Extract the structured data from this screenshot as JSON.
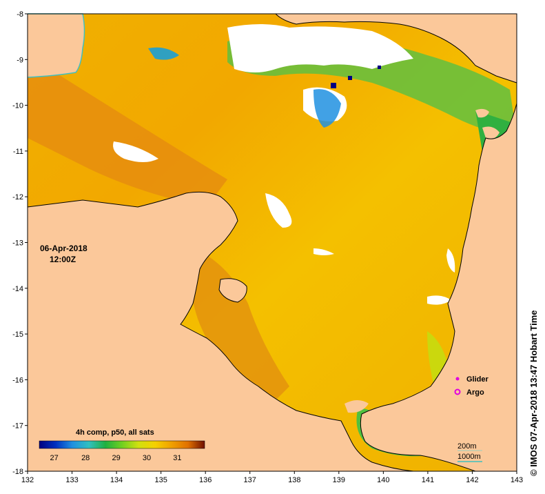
{
  "map": {
    "datetime_line1": "06-Apr-2018",
    "datetime_line2": "12:00Z",
    "credit": "© IMOS 07-Apr-2018 13:47 Hobart Time",
    "longitude_ticks": [
      "132",
      "133",
      "134",
      "135",
      "136",
      "137",
      "138",
      "139",
      "140",
      "141",
      "142",
      "143"
    ],
    "latitude_ticks": [
      "-8",
      "-9",
      "-10",
      "-11",
      "-12",
      "-13",
      "-14",
      "-15",
      "-16",
      "-17",
      "-18"
    ],
    "colorbar": {
      "title": "4h comp, p50, all sats",
      "tick_labels": [
        "27",
        "28",
        "29",
        "30",
        "31"
      ],
      "colors": [
        "#000080",
        "#0030c0",
        "#2090e0",
        "#30c0c0",
        "#20b040",
        "#70d020",
        "#d0e010",
        "#f5d000",
        "#f0a000",
        "#e07000",
        "#b03000",
        "#701000"
      ]
    },
    "legend": {
      "glider_label": "Glider",
      "argo_label": "Argo",
      "glider_color": "#e000e0",
      "argo_color": "#e000e0"
    },
    "isobaths": {
      "label_200m": "200m",
      "label_1000m": "1000m",
      "color_200m": "#9ad0c0",
      "color_1000m": "#40c0c0"
    },
    "colors": {
      "land": "#fbc89a",
      "cloud": "#ffffff",
      "coast": "#000000"
    }
  }
}
